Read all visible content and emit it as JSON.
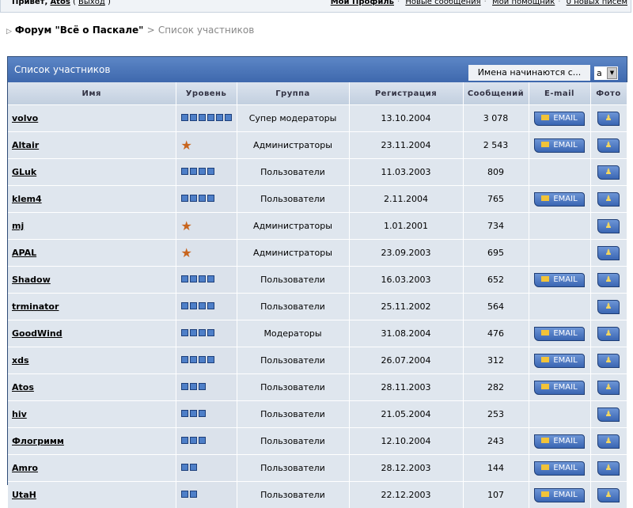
{
  "topbar": {
    "greeting": "Привет,",
    "user": "Atos",
    "logout": "Выход",
    "links": [
      "Мой Профиль",
      "Новые сообщения",
      "Мой помощник",
      "0 новых писем"
    ]
  },
  "breadcrumb": {
    "forum": "Форум \"Всё о Паскале\"",
    "separator": ">",
    "current": "Список участников"
  },
  "panel": {
    "title": "Список участников",
    "filter_label": "Имена начинаются с...",
    "filter_value": "а"
  },
  "columns": [
    "Имя",
    "Уровень",
    "Группа",
    "Регистрация",
    "Сообщений",
    "E-mail",
    "Фото"
  ],
  "email_label": "EMAIL",
  "colors": {
    "header": "#4a74b8",
    "row": "#dfe6ee",
    "pip": "#4e7fc8"
  },
  "rows": [
    {
      "name": "volvo",
      "level": 6,
      "group": "Супер модераторы",
      "reg": "13.10.2004",
      "posts": "3 078",
      "email": true
    },
    {
      "name": "Altair",
      "level": "star",
      "group": "Администраторы",
      "reg": "23.11.2004",
      "posts": "2 543",
      "email": true
    },
    {
      "name": "GLuk",
      "level": 4,
      "group": "Пользователи",
      "reg": "11.03.2003",
      "posts": "809",
      "email": false
    },
    {
      "name": "klem4",
      "level": 4,
      "group": "Пользователи",
      "reg": "2.11.2004",
      "posts": "765",
      "email": true
    },
    {
      "name": "mj",
      "level": "star",
      "group": "Администраторы",
      "reg": "1.01.2001",
      "posts": "734",
      "email": false
    },
    {
      "name": "APAL",
      "level": "star",
      "group": "Администраторы",
      "reg": "23.09.2003",
      "posts": "695",
      "email": false
    },
    {
      "name": "Shadow",
      "level": 4,
      "group": "Пользователи",
      "reg": "16.03.2003",
      "posts": "652",
      "email": true
    },
    {
      "name": "trminator",
      "level": 4,
      "group": "Пользователи",
      "reg": "25.11.2002",
      "posts": "564",
      "email": false
    },
    {
      "name": "GoodWind",
      "level": 4,
      "group": "Модераторы",
      "reg": "31.08.2004",
      "posts": "476",
      "email": true
    },
    {
      "name": "xds",
      "level": 4,
      "group": "Пользователи",
      "reg": "26.07.2004",
      "posts": "312",
      "email": true
    },
    {
      "name": "Atos",
      "level": 3,
      "group": "Пользователи",
      "reg": "28.11.2003",
      "posts": "282",
      "email": true
    },
    {
      "name": "hiv",
      "level": 3,
      "group": "Пользователи",
      "reg": "21.05.2004",
      "posts": "253",
      "email": false
    },
    {
      "name": "Флогримм",
      "level": 3,
      "group": "Пользователи",
      "reg": "12.10.2004",
      "posts": "243",
      "email": true
    },
    {
      "name": "Amro",
      "level": 2,
      "group": "Пользователи",
      "reg": "28.12.2003",
      "posts": "144",
      "email": true
    },
    {
      "name": "UtaH",
      "level": 2,
      "group": "Пользователи",
      "reg": "22.12.2003",
      "posts": "107",
      "email": true
    }
  ]
}
